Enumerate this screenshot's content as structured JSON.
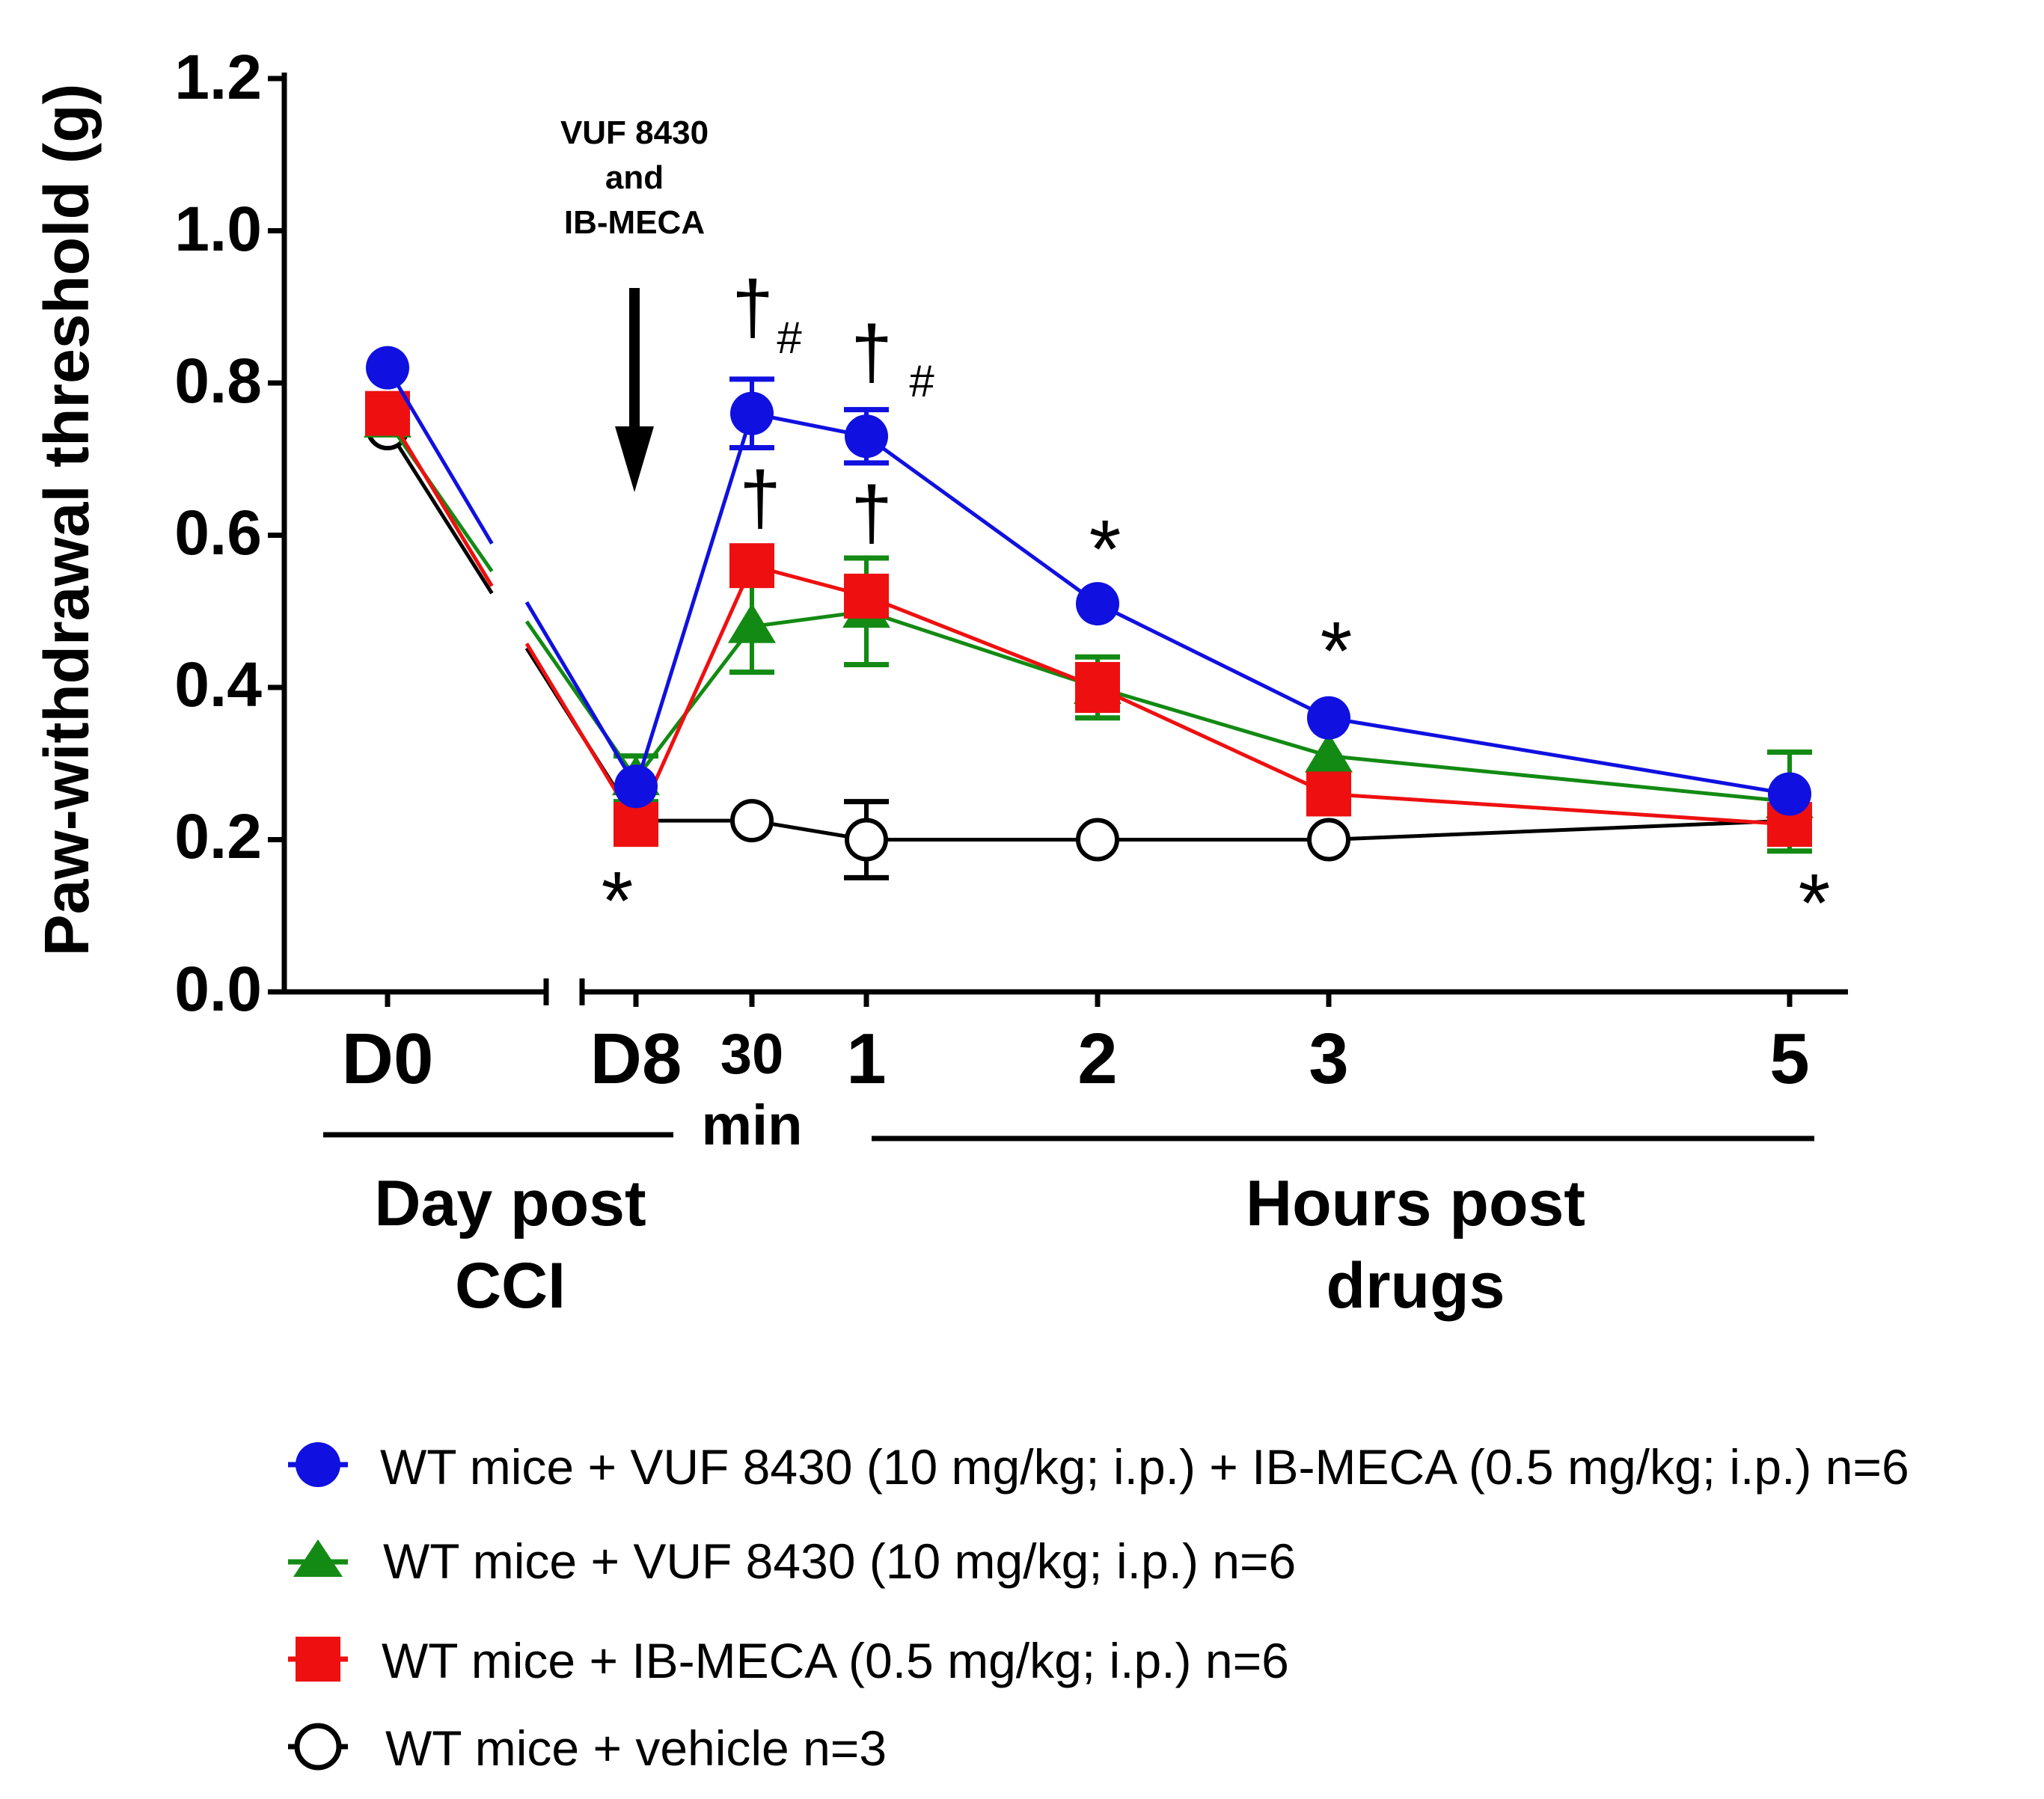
{
  "chart_data": {
    "type": "line",
    "ylabel": "Paw-withdrawal threshold (g)",
    "ylim": [
      0,
      1.2
    ],
    "yticks": [
      "0.0",
      "0.2",
      "0.4",
      "0.6",
      "0.8",
      "1.0",
      "1.2"
    ],
    "xlabels": {
      "d0": "D0",
      "d8": "D8",
      "t30_a": "30",
      "t30_b": "min",
      "h1": "1",
      "h2": "2",
      "h3": "3",
      "h5": "5"
    },
    "group_labels": {
      "day_1": "Day post",
      "day_2": "CCI",
      "hours_1": "Hours post",
      "hours_2": "drugs"
    },
    "arrow_label": [
      "VUF 8430",
      "and",
      "IB-MECA"
    ],
    "x_points": [
      "D0",
      "D8",
      "30 min",
      "1",
      "2",
      "3",
      "5"
    ],
    "series": [
      {
        "id": "blue",
        "name": "WT mice + VUF 8430 (10 mg/kg; i.p.) + IB-MECA (0.5 mg/kg; i.p.) n=6",
        "color": "#1010e0",
        "marker": "circle",
        "values": [
          0.82,
          0.27,
          0.76,
          0.73,
          0.51,
          0.36,
          0.26
        ],
        "errors": [
          0,
          0,
          0.045,
          0.035,
          0,
          0,
          0
        ]
      },
      {
        "id": "green",
        "name": "WT mice + VUF 8430 (10 mg/kg; i.p.) n=6",
        "color": "#138a13",
        "marker": "triangle",
        "values": [
          0.75,
          0.28,
          0.48,
          0.5,
          0.4,
          0.31,
          0.25
        ],
        "errors": [
          0,
          0.03,
          0.06,
          0.07,
          0.04,
          0,
          0.065
        ]
      },
      {
        "id": "red",
        "name": "WT mice + IB-MECA (0.5 mg/kg; i.p.) n=6",
        "color": "#ee1010",
        "marker": "square",
        "values": [
          0.76,
          0.22,
          0.56,
          0.52,
          0.4,
          0.26,
          0.22
        ],
        "errors": [
          0,
          0,
          0,
          0,
          0.03,
          0,
          0
        ]
      },
      {
        "id": "black",
        "name": "WT mice + vehicle n=3",
        "color": "#000000",
        "marker": "open-circle",
        "values": [
          0.74,
          0.225,
          0.225,
          0.2,
          0.2,
          0.2,
          0.225
        ],
        "errors": [
          0,
          0,
          0,
          0.05,
          0,
          0,
          0
        ]
      }
    ],
    "annotations": [
      {
        "text": "*",
        "note": "below D8"
      },
      {
        "text": "†",
        "note": "above blue 30 min"
      },
      {
        "text": "#",
        "note": "blue 30 min"
      },
      {
        "text": "†",
        "note": "above blue 1 h"
      },
      {
        "text": "#",
        "note": "blue 1 h"
      },
      {
        "text": "†",
        "note": "above red 30 min"
      },
      {
        "text": "†",
        "note": "above green 1 h"
      },
      {
        "text": "*",
        "note": "above blue 2 h"
      },
      {
        "text": "*",
        "note": "above blue 3 h"
      },
      {
        "text": "*",
        "note": "below 5 h"
      }
    ]
  }
}
